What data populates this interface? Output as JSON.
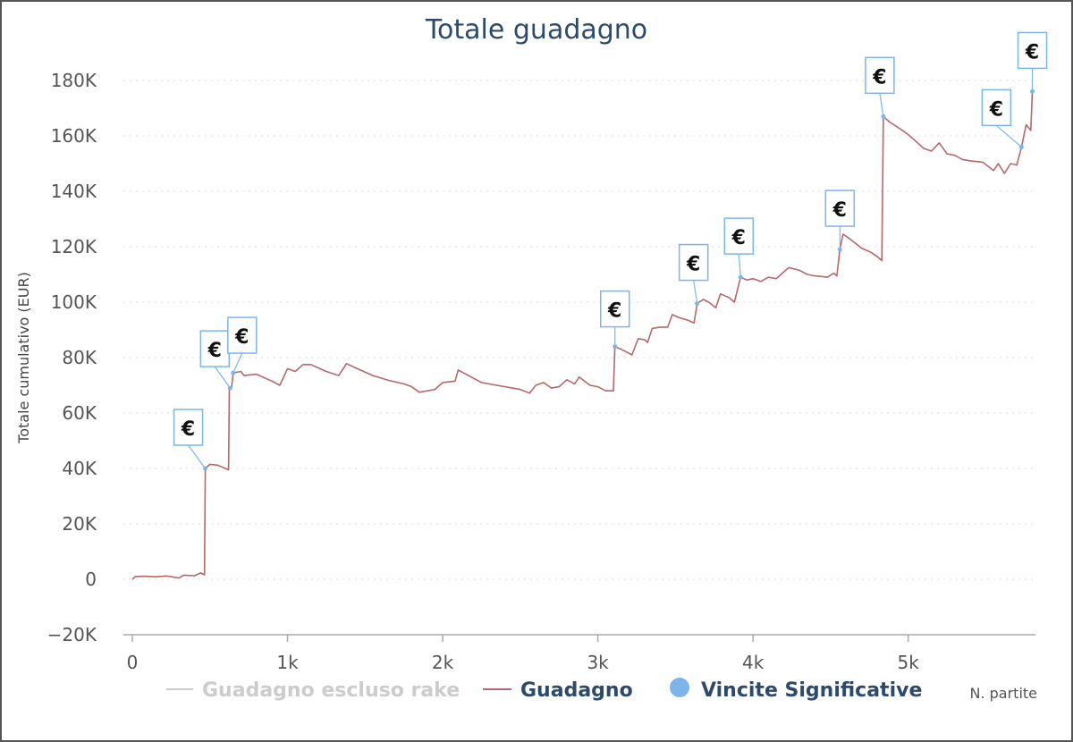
{
  "chart_data": {
    "type": "line",
    "title": "Totale guadagno",
    "xlabel": "N. partite",
    "ylabel": "Totale cumulativo (EUR)",
    "xlim": [
      0,
      5820
    ],
    "ylim": [
      -20000,
      180000
    ],
    "x_ticks": [
      0,
      1000,
      2000,
      3000,
      4000,
      5000
    ],
    "x_tick_labels": [
      "0",
      "1k",
      "2k",
      "3k",
      "4k",
      "5k"
    ],
    "y_ticks": [
      -20000,
      0,
      20000,
      40000,
      60000,
      80000,
      100000,
      120000,
      140000,
      160000,
      180000
    ],
    "y_tick_labels": [
      "−20K",
      "0",
      "20K",
      "40K",
      "60K",
      "80K",
      "100K",
      "120K",
      "140K",
      "160K",
      "180K"
    ],
    "grid": true,
    "legend_position": "bottom",
    "series": [
      {
        "name": "Guadagno escluso rake",
        "color": "#cccccc",
        "visible": false,
        "points": []
      },
      {
        "name": "Guadagno",
        "color": "#b5676a",
        "visible": true,
        "points": [
          [
            0,
            0
          ],
          [
            20,
            1000
          ],
          [
            80,
            1100
          ],
          [
            150,
            900
          ],
          [
            220,
            1200
          ],
          [
            300,
            500
          ],
          [
            330,
            1500
          ],
          [
            400,
            1300
          ],
          [
            440,
            2300
          ],
          [
            465,
            1600
          ],
          [
            470,
            40000
          ],
          [
            500,
            41500
          ],
          [
            550,
            41200
          ],
          [
            620,
            39500
          ],
          [
            625,
            69000
          ],
          [
            640,
            69500
          ],
          [
            650,
            74500
          ],
          [
            700,
            75000
          ],
          [
            720,
            73500
          ],
          [
            800,
            74000
          ],
          [
            900,
            71500
          ],
          [
            950,
            70000
          ],
          [
            1000,
            76000
          ],
          [
            1050,
            75000
          ],
          [
            1100,
            77500
          ],
          [
            1150,
            77500
          ],
          [
            1250,
            75000
          ],
          [
            1330,
            73500
          ],
          [
            1380,
            77800
          ],
          [
            1450,
            76000
          ],
          [
            1550,
            73500
          ],
          [
            1650,
            71800
          ],
          [
            1750,
            70500
          ],
          [
            1800,
            69500
          ],
          [
            1850,
            67500
          ],
          [
            1950,
            68500
          ],
          [
            2000,
            71000
          ],
          [
            2080,
            71500
          ],
          [
            2100,
            75500
          ],
          [
            2150,
            74000
          ],
          [
            2250,
            71000
          ],
          [
            2350,
            70000
          ],
          [
            2450,
            69000
          ],
          [
            2500,
            68500
          ],
          [
            2560,
            67200
          ],
          [
            2600,
            70000
          ],
          [
            2650,
            71000
          ],
          [
            2700,
            69000
          ],
          [
            2750,
            69500
          ],
          [
            2800,
            72000
          ],
          [
            2850,
            70500
          ],
          [
            2880,
            73000
          ],
          [
            2950,
            70000
          ],
          [
            3000,
            69500
          ],
          [
            3050,
            68000
          ],
          [
            3100,
            68000
          ],
          [
            3110,
            84000
          ],
          [
            3150,
            83000
          ],
          [
            3220,
            81000
          ],
          [
            3260,
            86800
          ],
          [
            3300,
            86500
          ],
          [
            3320,
            85500
          ],
          [
            3350,
            90500
          ],
          [
            3400,
            91000
          ],
          [
            3450,
            91000
          ],
          [
            3480,
            95500
          ],
          [
            3520,
            94500
          ],
          [
            3580,
            93500
          ],
          [
            3620,
            92500
          ],
          [
            3640,
            99500
          ],
          [
            3680,
            101000
          ],
          [
            3720,
            99800
          ],
          [
            3760,
            98000
          ],
          [
            3790,
            103000
          ],
          [
            3850,
            101500
          ],
          [
            3880,
            100000
          ],
          [
            3920,
            109000
          ],
          [
            3960,
            108000
          ],
          [
            4000,
            108500
          ],
          [
            4050,
            107500
          ],
          [
            4100,
            109000
          ],
          [
            4150,
            108500
          ],
          [
            4200,
            111000
          ],
          [
            4230,
            112500
          ],
          [
            4300,
            111500
          ],
          [
            4350,
            110000
          ],
          [
            4400,
            109500
          ],
          [
            4480,
            109000
          ],
          [
            4520,
            110500
          ],
          [
            4540,
            109500
          ],
          [
            4560,
            119000
          ],
          [
            4580,
            124500
          ],
          [
            4620,
            123000
          ],
          [
            4700,
            119500
          ],
          [
            4760,
            118000
          ],
          [
            4800,
            116500
          ],
          [
            4830,
            115000
          ],
          [
            4840,
            167000
          ],
          [
            4880,
            165000
          ],
          [
            4950,
            162500
          ],
          [
            5000,
            160500
          ],
          [
            5050,
            158000
          ],
          [
            5100,
            155500
          ],
          [
            5150,
            154500
          ],
          [
            5200,
            157500
          ],
          [
            5250,
            153500
          ],
          [
            5300,
            153000
          ],
          [
            5350,
            151500
          ],
          [
            5400,
            151000
          ],
          [
            5480,
            150500
          ],
          [
            5550,
            147500
          ],
          [
            5580,
            150000
          ],
          [
            5620,
            146500
          ],
          [
            5660,
            150000
          ],
          [
            5700,
            149500
          ],
          [
            5730,
            156000
          ],
          [
            5760,
            164000
          ],
          [
            5790,
            162000
          ],
          [
            5800,
            176000
          ]
        ]
      },
      {
        "name": "Vincite Significative",
        "color": "#7cb5ec",
        "marker": "€",
        "points": [
          [
            470,
            40000
          ],
          [
            630,
            69000
          ],
          [
            650,
            74500
          ],
          [
            3110,
            84000
          ],
          [
            3640,
            99500
          ],
          [
            3920,
            109000
          ],
          [
            4560,
            119000
          ],
          [
            4840,
            167000
          ],
          [
            5730,
            156000
          ],
          [
            5800,
            176000
          ]
        ]
      }
    ]
  }
}
